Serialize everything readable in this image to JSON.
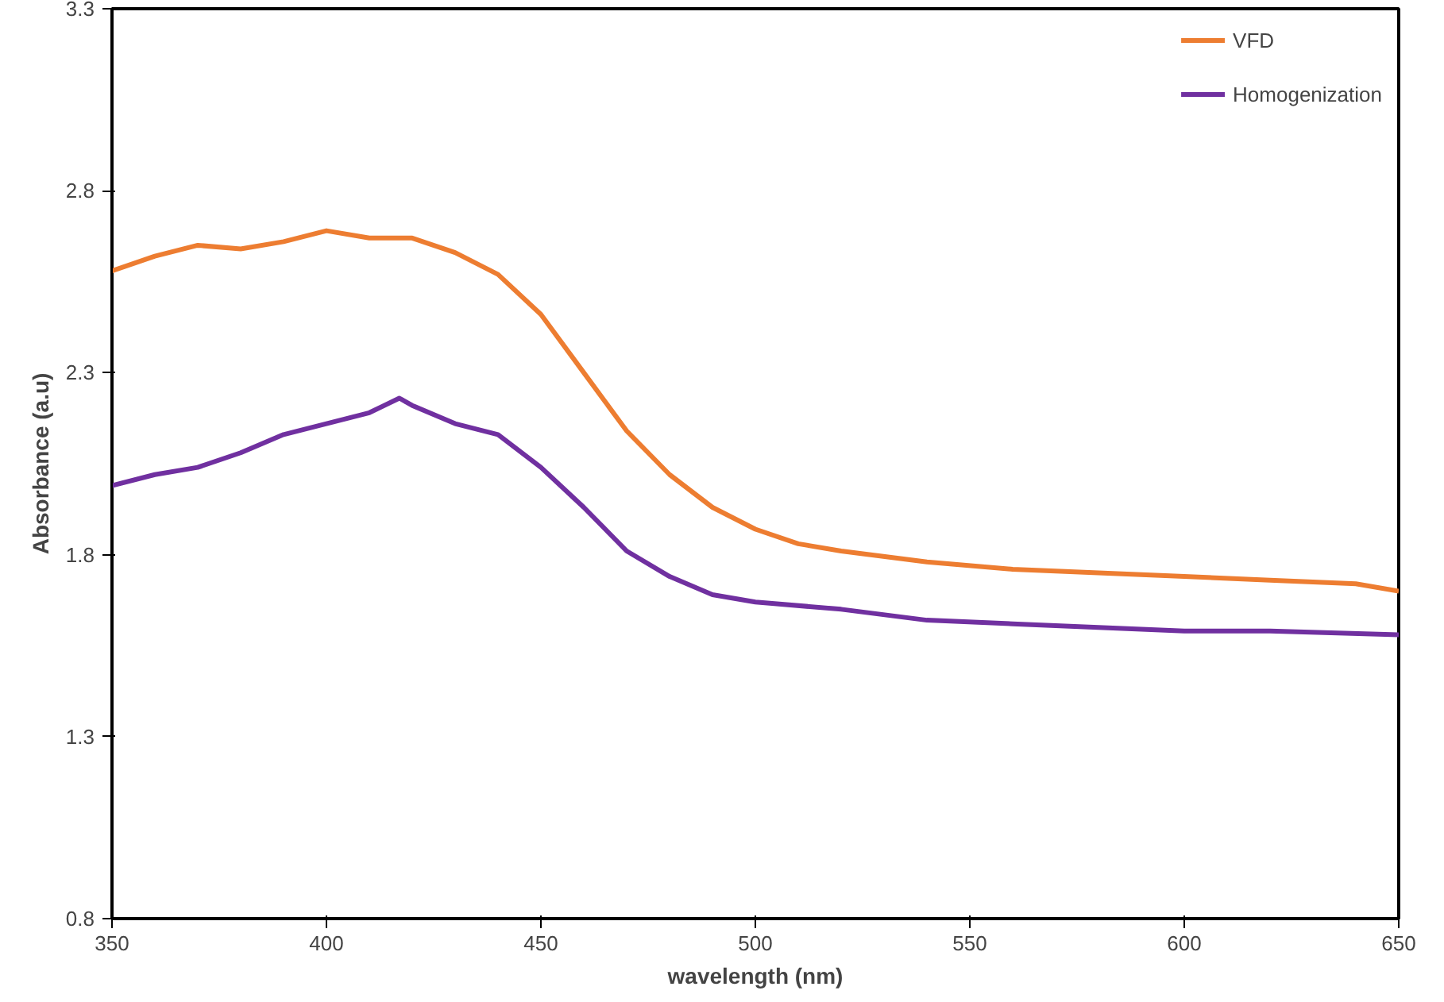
{
  "chart_data": {
    "type": "line",
    "xlabel": "wavelength (nm)",
    "ylabel": "Absorbance (a.u)",
    "xlim": [
      350,
      650
    ],
    "xticks": [
      350,
      400,
      450,
      500,
      550,
      600,
      650
    ],
    "ylim": [
      0.8,
      3.3
    ],
    "yticks": [
      0.8,
      1.3,
      1.8,
      2.3,
      2.8,
      3.3
    ],
    "grid": false,
    "legend": "top right",
    "marker": "none",
    "line_style": "solid",
    "series": [
      {
        "name": "VFD",
        "color": "#ed7d31",
        "x": [
          350,
          360,
          370,
          380,
          390,
          400,
          410,
          420,
          430,
          440,
          450,
          460,
          470,
          480,
          490,
          500,
          510,
          520,
          540,
          560,
          580,
          600,
          620,
          640,
          650
        ],
        "values": [
          2.58,
          2.62,
          2.65,
          2.64,
          2.66,
          2.69,
          2.67,
          2.67,
          2.63,
          2.57,
          2.46,
          2.3,
          2.14,
          2.02,
          1.93,
          1.87,
          1.83,
          1.81,
          1.78,
          1.76,
          1.75,
          1.74,
          1.73,
          1.72,
          1.7
        ]
      },
      {
        "name": "Homogenization",
        "color": "#7030a0",
        "x": [
          350,
          360,
          370,
          380,
          390,
          400,
          410,
          417,
          420,
          430,
          440,
          450,
          460,
          470,
          480,
          490,
          500,
          520,
          540,
          560,
          580,
          600,
          620,
          650
        ],
        "values": [
          1.99,
          2.02,
          2.04,
          2.08,
          2.13,
          2.16,
          2.19,
          2.23,
          2.21,
          2.16,
          2.13,
          2.04,
          1.93,
          1.81,
          1.74,
          1.69,
          1.67,
          1.65,
          1.62,
          1.61,
          1.6,
          1.59,
          1.59,
          1.58
        ]
      }
    ]
  }
}
